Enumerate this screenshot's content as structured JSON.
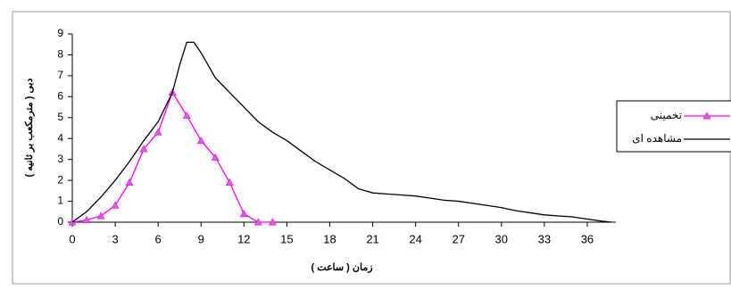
{
  "chart_data": {
    "type": "line",
    "x_label": "زمان ( ساعت )",
    "y_label": "دبی ( مترمکعب بر ثانیه )",
    "xlim": [
      0,
      38
    ],
    "ylim": [
      0,
      9
    ],
    "xticks": [
      0,
      3,
      6,
      9,
      12,
      15,
      18,
      21,
      24,
      27,
      30,
      33,
      36
    ],
    "yticks": [
      0,
      1,
      2,
      3,
      4,
      5,
      6,
      7,
      8,
      9
    ],
    "legend": "right",
    "series": [
      {
        "name": "تخمینی",
        "color": "#ff00ff",
        "marker": "triangle",
        "x": [
          0,
          1,
          2,
          3,
          4,
          5,
          6,
          7,
          8,
          9,
          10,
          11,
          12,
          13,
          14
        ],
        "values": [
          0,
          0.1,
          0.3,
          0.8,
          1.9,
          3.5,
          4.3,
          6.2,
          5.1,
          3.9,
          3.1,
          1.9,
          0.4,
          0,
          0
        ]
      },
      {
        "name": "مشاهده ای",
        "color": "#000000",
        "x": [
          0,
          1,
          2,
          3,
          4,
          5,
          6,
          7,
          7.5,
          8,
          8.5,
          9,
          10,
          11,
          12,
          13,
          14,
          15,
          16,
          17,
          18,
          19,
          20,
          21,
          22,
          23,
          24,
          25,
          26,
          27,
          28,
          29,
          30,
          31,
          32,
          33,
          34,
          35,
          36,
          37,
          37.7
        ],
        "values": [
          0,
          0.5,
          1.2,
          2.0,
          2.9,
          3.9,
          4.8,
          6.2,
          7.5,
          8.6,
          8.6,
          8.1,
          6.9,
          6.2,
          5.5,
          4.8,
          4.3,
          3.9,
          3.4,
          2.9,
          2.5,
          2.1,
          1.6,
          1.4,
          1.35,
          1.3,
          1.25,
          1.15,
          1.05,
          1.0,
          0.9,
          0.8,
          0.7,
          0.55,
          0.45,
          0.35,
          0.3,
          0.25,
          0.15,
          0.05,
          0
        ]
      }
    ]
  }
}
